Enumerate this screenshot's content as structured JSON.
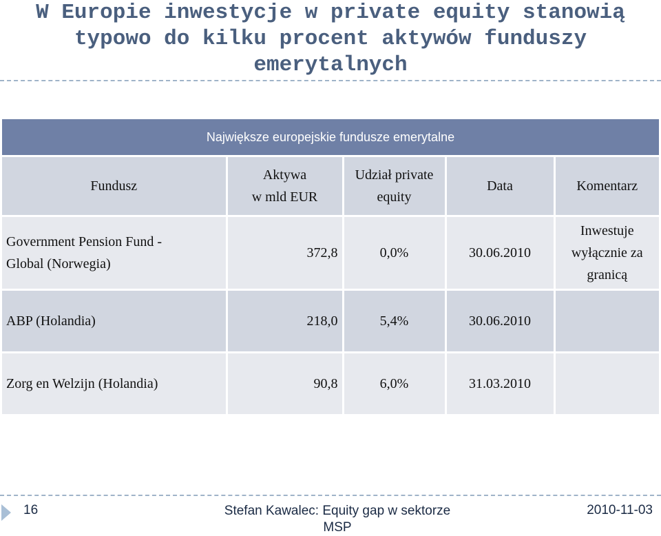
{
  "slide": {
    "title_lines": [
      "W Europie inwestycje w private equity stanowią",
      "typowo do kilku procent aktywów funduszy",
      "emerytalnych"
    ]
  },
  "table": {
    "caption": "Największe europejskie fundusze emerytalne",
    "headers": {
      "fund": "Fundusz",
      "assets_line1": "Aktywa",
      "assets_line2": "w mld EUR",
      "pe_line1": "Udział private",
      "pe_line2": "equity",
      "date": "Data",
      "comment": "Komentarz"
    },
    "rows": [
      {
        "fund_line1": "Government Pension Fund -",
        "fund_line2": "Global (Norwegia)",
        "assets": "372,8",
        "pe_share": "0,0%",
        "date": "30.06.2010",
        "comment_line1": "Inwestuje",
        "comment_line2": "wyłącznie za",
        "comment_line3": "granicą"
      },
      {
        "fund_line1": "ABP (Holandia)",
        "assets": "218,0",
        "pe_share": "5,4%",
        "date": "30.06.2010",
        "comment_line1": ""
      },
      {
        "fund_line1": "Zorg en Welzijn (Holandia)",
        "assets": "90,8",
        "pe_share": "6,0%",
        "date": "31.03.2010",
        "comment_line1": ""
      }
    ]
  },
  "footer": {
    "page_number": "16",
    "center_line1": "Stefan Kawalec: Equity gap w sektorze",
    "center_line2": "MSP",
    "date": "2010-11-03"
  },
  "colors": {
    "title": "#4a5f7e",
    "header_band": "#6f80a6",
    "row_dark": "#d1d6e0",
    "row_light": "#e7e9ee"
  }
}
